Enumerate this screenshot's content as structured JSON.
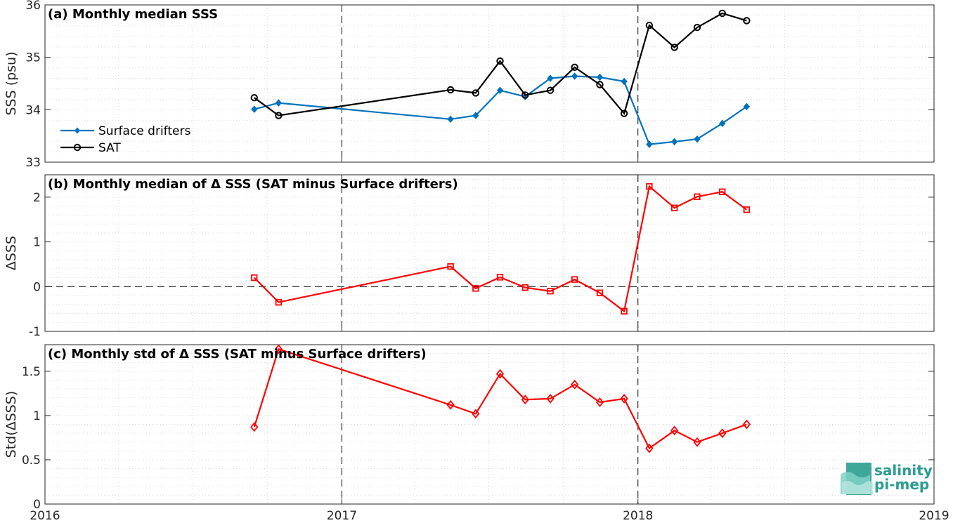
{
  "chart_data": [
    {
      "type": "line",
      "title": "(a) Monthly median SSS",
      "xlabel": "",
      "ylabel": "SSS (psu)",
      "xlim": [
        "2016-01-01",
        "2019-01-01"
      ],
      "ylim": [
        33,
        36
      ],
      "yticks": [
        "33",
        "34",
        "35",
        "36"
      ],
      "grid": "minor-dotted",
      "legend_placement": "center-left",
      "series": [
        {
          "name": "Surface drifters",
          "color": "#0072BD",
          "marker": "filled-diamond",
          "x": [
            "2016-09-15",
            "2016-10-15",
            "2017-05-15",
            "2017-06-15",
            "2017-07-15",
            "2017-08-15",
            "2017-09-15",
            "2017-10-15",
            "2017-11-15",
            "2017-12-15",
            "2018-01-15",
            "2018-02-15",
            "2018-03-15",
            "2018-04-15",
            "2018-05-15"
          ],
          "values": [
            34.01,
            34.13,
            33.82,
            33.89,
            34.37,
            34.25,
            34.6,
            34.64,
            34.62,
            34.54,
            33.34,
            33.39,
            33.44,
            33.74,
            34.06
          ]
        },
        {
          "name": "SAT",
          "color": "#000000",
          "marker": "open-circle",
          "x": [
            "2016-09-15",
            "2016-10-15",
            "2017-05-15",
            "2017-06-15",
            "2017-07-15",
            "2017-08-15",
            "2017-09-15",
            "2017-10-15",
            "2017-11-15",
            "2017-12-15",
            "2018-01-15",
            "2018-02-15",
            "2018-03-15",
            "2018-04-15",
            "2018-05-15"
          ],
          "values": [
            34.23,
            33.89,
            34.38,
            34.32,
            34.93,
            34.28,
            34.37,
            34.81,
            34.48,
            33.93,
            35.61,
            35.19,
            35.57,
            35.84,
            35.7
          ]
        }
      ]
    },
    {
      "type": "line",
      "title": "(b) Monthly median of Δ SSS (SAT minus Surface drifters)",
      "xlabel": "",
      "ylabel": "ΔSSS",
      "xlim": [
        "2016-01-01",
        "2019-01-01"
      ],
      "ylim": [
        -1,
        2.5
      ],
      "yticks": [
        "-1",
        "0",
        "1",
        "2"
      ],
      "grid": "minor-dotted",
      "zero_line": "dashed",
      "series": [
        {
          "color": "#FF0000",
          "marker": "open-square",
          "x": [
            "2016-09-15",
            "2016-10-15",
            "2017-05-15",
            "2017-06-15",
            "2017-07-15",
            "2017-08-15",
            "2017-09-15",
            "2017-10-15",
            "2017-11-15",
            "2017-12-15",
            "2018-01-15",
            "2018-02-15",
            "2018-03-15",
            "2018-04-15",
            "2018-05-15"
          ],
          "values": [
            0.2,
            -0.35,
            0.45,
            -0.04,
            0.21,
            -0.02,
            -0.1,
            0.16,
            -0.14,
            -0.55,
            2.24,
            1.76,
            2.01,
            2.12,
            1.72
          ]
        }
      ]
    },
    {
      "type": "line",
      "title": "(c) Monthly std of Δ SSS (SAT minus Surface drifters)",
      "xlabel": "",
      "ylabel": "Std(ΔSSS)",
      "xlim": [
        "2016-01-01",
        "2019-01-01"
      ],
      "ylim": [
        0,
        1.8
      ],
      "yticks": [
        "0",
        "0.5",
        "1",
        "1.5"
      ],
      "xticks": [
        "2016",
        "2017",
        "2018",
        "2019"
      ],
      "grid": "minor-dotted",
      "series": [
        {
          "color": "#FF0000",
          "marker": "open-diamond",
          "x": [
            "2016-09-15",
            "2016-10-15",
            "2017-05-15",
            "2017-06-15",
            "2017-07-15",
            "2017-08-15",
            "2017-09-15",
            "2017-10-15",
            "2017-11-15",
            "2017-12-15",
            "2018-01-15",
            "2018-02-15",
            "2018-03-15",
            "2018-04-15",
            "2018-05-15"
          ],
          "values": [
            0.87,
            1.75,
            1.12,
            1.02,
            1.47,
            1.18,
            1.19,
            1.35,
            1.15,
            1.19,
            0.63,
            0.83,
            0.7,
            0.8,
            0.9
          ]
        }
      ]
    }
  ],
  "logo": {
    "line1": "salinity",
    "line2": "pi-mep",
    "color": "#2a9d8f"
  }
}
